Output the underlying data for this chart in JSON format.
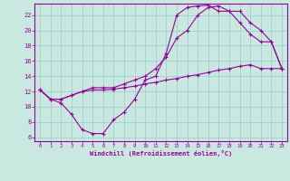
{
  "xlabel": "Windchill (Refroidissement éolien,°C)",
  "bg_color": "#c8e8e0",
  "line_color": "#990099",
  "grid_color": "#99cccc",
  "xlim": [
    -0.5,
    23.5
  ],
  "ylim": [
    5.5,
    23.5
  ],
  "xticks": [
    0,
    1,
    2,
    3,
    4,
    5,
    6,
    7,
    8,
    9,
    10,
    11,
    12,
    13,
    14,
    15,
    16,
    17,
    18,
    19,
    20,
    21,
    22,
    23
  ],
  "yticks": [
    6,
    8,
    10,
    12,
    14,
    16,
    18,
    20,
    22
  ],
  "series1_x": [
    0,
    1,
    2,
    3,
    4,
    5,
    6,
    7,
    8,
    9,
    10,
    11,
    12,
    13,
    14,
    15,
    16,
    17,
    18,
    19,
    20,
    21,
    22,
    23
  ],
  "series1_y": [
    12.2,
    11.0,
    10.5,
    9.0,
    7.0,
    6.5,
    6.5,
    8.3,
    9.3,
    11.0,
    13.5,
    14.0,
    17.0,
    22.0,
    23.0,
    23.2,
    23.3,
    22.5,
    22.5,
    21.0,
    19.5,
    18.5,
    18.5,
    15.0
  ],
  "series2_x": [
    0,
    1,
    2,
    3,
    4,
    5,
    6,
    7,
    8,
    9,
    10,
    11,
    12,
    13,
    14,
    15,
    16,
    17,
    18,
    19,
    20,
    21,
    22,
    23
  ],
  "series2_y": [
    12.2,
    11.0,
    11.0,
    11.5,
    12.0,
    12.2,
    12.2,
    12.3,
    12.5,
    12.7,
    13.0,
    13.2,
    13.5,
    13.7,
    14.0,
    14.2,
    14.5,
    14.8,
    15.0,
    15.3,
    15.5,
    15.0,
    15.0,
    15.0
  ],
  "series3_x": [
    0,
    1,
    2,
    3,
    4,
    5,
    6,
    7,
    8,
    9,
    10,
    11,
    12,
    13,
    14,
    15,
    16,
    17,
    18,
    19,
    20,
    21,
    22,
    23
  ],
  "series3_y": [
    12.2,
    11.0,
    11.0,
    11.5,
    12.0,
    12.5,
    12.5,
    12.5,
    13.0,
    13.5,
    14.0,
    15.0,
    16.5,
    19.0,
    20.0,
    22.0,
    23.0,
    23.2,
    22.5,
    22.5,
    21.0,
    20.0,
    18.5,
    15.0
  ]
}
